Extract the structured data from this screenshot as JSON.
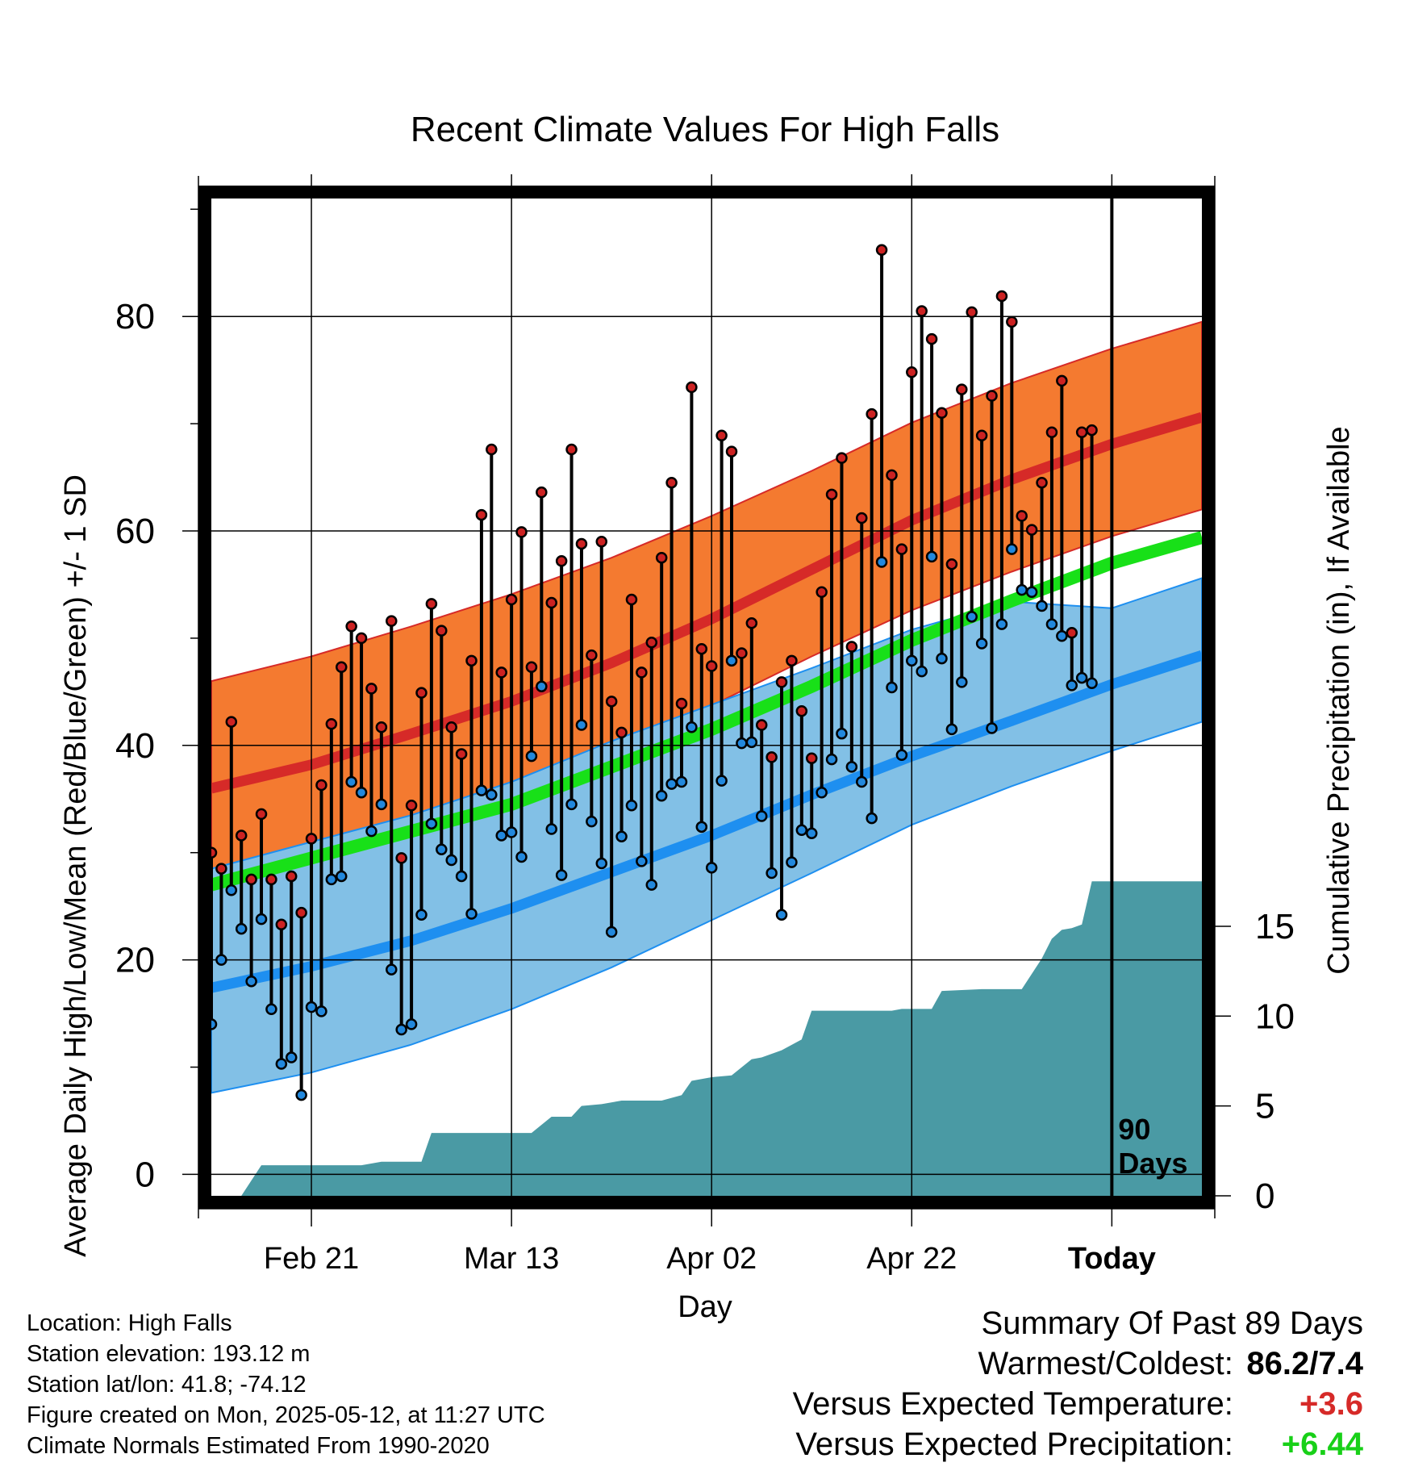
{
  "chart_data": {
    "type": "line",
    "title": "Recent Climate Values For High Falls",
    "xlabel": "Day",
    "ylabel": "Average Daily High/Low/Mean (Red/Blue/Green) +/- 1 SD",
    "y2label": "Cumulative Precipitation (in), If Available",
    "x_tick_labels": [
      "Feb 21",
      "Mar 13",
      "Apr 02",
      "Apr 22",
      "Today"
    ],
    "x_tick_dates": [
      "2025-02-21",
      "2025-03-13",
      "2025-04-02",
      "2025-04-22",
      "2025-05-12"
    ],
    "x_range": [
      "2025-02-11",
      "2025-05-21"
    ],
    "ylim": [
      -2,
      91
    ],
    "y_ticks": [
      0,
      20,
      40,
      60,
      80
    ],
    "y2lim": [
      0,
      55.5
    ],
    "y2_ticks": [
      0,
      5,
      10,
      15
    ],
    "today_marker": {
      "date": "2025-05-12",
      "label": "90",
      "label2": "Days"
    },
    "grid": true,
    "colors": {
      "high_band": "#f47a30",
      "high_line": "#d62a28",
      "low_band": "#82c0e6",
      "low_line": "#1e8ff0",
      "mean_line": "#18e018",
      "precip": "#4a9aa4",
      "high_dot": "#cc2222",
      "low_dot": "#2288dd",
      "warm": "#d62a28",
      "wet": "#18d018"
    },
    "normals": {
      "dates": [
        "2025-02-11",
        "2025-02-21",
        "2025-03-03",
        "2025-03-13",
        "2025-03-23",
        "2025-04-02",
        "2025-04-12",
        "2025-04-22",
        "2025-05-02",
        "2025-05-12",
        "2025-05-21"
      ],
      "high_mean": [
        36,
        38.2,
        41.1,
        44.1,
        47.7,
        51.8,
        56.4,
        61,
        64.8,
        68.1,
        70.6
      ],
      "high_sd_lower": [
        28,
        30.2,
        33.1,
        35.8,
        39.4,
        43.7,
        48.3,
        52.6,
        56.2,
        59.5,
        62
      ],
      "high_sd_upper": [
        46,
        48.3,
        51.1,
        54.1,
        57.5,
        61.4,
        65.6,
        70.1,
        73.8,
        77,
        79.5
      ],
      "low_mean": [
        17.4,
        19.4,
        21.8,
        24.8,
        28.2,
        31.6,
        35.4,
        39,
        42.3,
        45.7,
        48.4
      ],
      "low_sd_lower": [
        7.6,
        9.5,
        12.1,
        15.4,
        19.3,
        23.7,
        28.1,
        32.6,
        36.2,
        39.5,
        42.2
      ],
      "low_sd_upper": [
        28.5,
        31,
        33.5,
        36.6,
        40.4,
        43.8,
        47.2,
        50.8,
        53.4,
        52.8,
        55.6
      ],
      "mean": [
        27,
        29.5,
        32,
        34.5,
        38,
        41.5,
        45.5,
        49.8,
        53.5,
        57,
        59.4
      ]
    },
    "daily_start_date": "2025-02-11",
    "daily_high": [
      30,
      28.5,
      42.2,
      31.6,
      27.5,
      33.6,
      27.5,
      23.3,
      27.8,
      24.4,
      31.3,
      36.3,
      42,
      47.3,
      51.1,
      50,
      45.3,
      41.7,
      51.6,
      29.5,
      34.4,
      44.9,
      53.2,
      50.7,
      41.7,
      39.2,
      47.9,
      61.5,
      67.6,
      46.8,
      53.6,
      59.9,
      47.3,
      63.6,
      53.3,
      57.2,
      67.6,
      58.8,
      48.4,
      59,
      44.1,
      41.2,
      53.6,
      46.8,
      49.6,
      57.5,
      64.5,
      43.9,
      73.4,
      49,
      47.4,
      68.9,
      67.4,
      48.6,
      51.4,
      41.9,
      38.9,
      45.9,
      47.9,
      43.2,
      38.8,
      54.3,
      63.4,
      66.8,
      49.2,
      61.2,
      70.9,
      86.2,
      65.2,
      58.3,
      74.8,
      80.5,
      77.9,
      71,
      56.9,
      73.2,
      80.4,
      68.9,
      72.6,
      81.9,
      79.5,
      61.4,
      60.1,
      64.5,
      69.2,
      74,
      50.5,
      69.2,
      69.4
    ],
    "daily_low": [
      14,
      20,
      26.5,
      22.9,
      18,
      23.8,
      15.4,
      10.3,
      10.9,
      7.4,
      15.6,
      15.2,
      27.5,
      27.8,
      36.6,
      35.6,
      32,
      34.5,
      19.1,
      13.5,
      14,
      24.2,
      32.7,
      30.3,
      29.3,
      27.8,
      24.3,
      35.8,
      35.4,
      31.6,
      31.9,
      29.6,
      39,
      45.5,
      32.2,
      27.9,
      34.5,
      41.9,
      32.9,
      29,
      22.6,
      31.5,
      34.4,
      29.2,
      27,
      35.3,
      36.4,
      36.6,
      41.7,
      32.4,
      28.6,
      36.7,
      47.9,
      40.2,
      40.3,
      33.4,
      28.1,
      24.2,
      29.1,
      32.1,
      31.8,
      35.6,
      38.7,
      41.1,
      38,
      36.6,
      33.2,
      57.1,
      45.4,
      39.1,
      47.9,
      46.9,
      57.6,
      48.1,
      41.5,
      45.9,
      52,
      49.5,
      41.6,
      51.3,
      58.3,
      54.5,
      54.3,
      53,
      51.3,
      50.2,
      45.6,
      46.3,
      45.8
    ],
    "precip_cumulative": {
      "dates": [
        "2025-02-11",
        "2025-02-14",
        "2025-02-16",
        "2025-02-26",
        "2025-02-28",
        "2025-03-04",
        "2025-03-05",
        "2025-03-15",
        "2025-03-17",
        "2025-03-19",
        "2025-03-20",
        "2025-03-22",
        "2025-03-24",
        "2025-03-28",
        "2025-03-30",
        "2025-03-31",
        "2025-04-02",
        "2025-04-04",
        "2025-04-06",
        "2025-04-07",
        "2025-04-09",
        "2025-04-11",
        "2025-04-12",
        "2025-04-20",
        "2025-04-21",
        "2025-04-24",
        "2025-04-25",
        "2025-04-29",
        "2025-05-03",
        "2025-05-05",
        "2025-05-06",
        "2025-05-07",
        "2025-05-08",
        "2025-05-09",
        "2025-05-10",
        "2025-05-11",
        "2025-05-12",
        "2025-05-21"
      ],
      "values": [
        0,
        0,
        1.7,
        1.7,
        1.9,
        1.9,
        3.5,
        3.5,
        4.4,
        4.4,
        5,
        5.1,
        5.3,
        5.3,
        5.6,
        6.4,
        6.6,
        6.7,
        7.6,
        7.7,
        8.1,
        8.7,
        10.3,
        10.3,
        10.4,
        10.4,
        11.4,
        11.5,
        11.5,
        13.2,
        14.3,
        14.8,
        14.9,
        15.1,
        17.5,
        17.5,
        17.5,
        17.5
      ]
    }
  },
  "location_info": {
    "location": "Location: High Falls",
    "elevation": "Station elevation: 193.12 m",
    "latlon": "Station lat/lon: 41.8; -74.12",
    "created": "Figure created on Mon, 2025-05-12, at 11:27 UTC",
    "normals": "Climate Normals Estimated From 1990-2020"
  },
  "summary": {
    "title": "Summary Of Past 89 Days",
    "warm_cold_label": "Warmest/Coldest:",
    "warm_cold_value": "86.2/7.4",
    "temp_label": "Versus Expected Temperature:",
    "temp_value": "+3.6",
    "precip_label": "Versus Expected Precipitation:",
    "precip_value": "+6.44"
  }
}
